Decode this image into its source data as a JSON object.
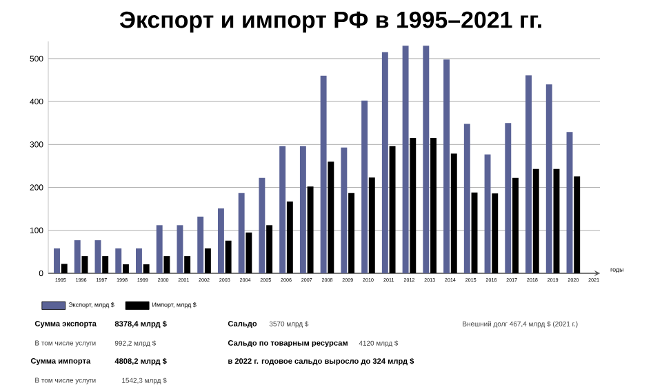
{
  "chart_data": {
    "type": "bar",
    "title": "Экспорт и импорт РФ в 1995–2021 гг.",
    "xlabel": "годы",
    "categories": [
      "1995",
      "1996",
      "1997",
      "1998",
      "1999",
      "2000",
      "2001",
      "2002",
      "2003",
      "2004",
      "2005",
      "2006",
      "2007",
      "2008",
      "2009",
      "2010",
      "2011",
      "2012",
      "2013",
      "2014",
      "2015",
      "2016",
      "2017",
      "2018",
      "2019",
      "2020",
      "2021"
    ],
    "series": [
      {
        "name": "Экспорт, млрд $",
        "color": "#5a6296",
        "values": [
          58,
          77,
          77,
          58,
          58,
          112,
          112,
          132,
          151,
          187,
          222,
          296,
          296,
          460,
          293,
          402,
          515,
          530,
          530,
          498,
          348,
          277,
          350,
          461,
          440,
          329,
          null
        ]
      },
      {
        "name": "Импорт, млрд $",
        "color": "#000000",
        "values": [
          22,
          40,
          40,
          21,
          21,
          40,
          40,
          58,
          76,
          95,
          112,
          167,
          202,
          260,
          187,
          223,
          296,
          315,
          315,
          279,
          188,
          186,
          222,
          243,
          243,
          226,
          null
        ]
      }
    ],
    "ylim": [
      0,
      540
    ],
    "yticks": [
      0,
      100,
      200,
      300,
      400,
      500
    ],
    "grid": "y",
    "legend": "bottom left",
    "annotations": [
      "Сумма экспорта",
      "8378,4 млрд $",
      "В том числе услуги",
      "992,2 млрд $",
      "Сумма импорта",
      "4808,2 млрд $",
      "В том числе услуги",
      "1542,3 млрд $",
      "Сальдо",
      "3570 млрд $",
      "Сальдо по товарным ресурсам",
      "4120 млрд $",
      "в 2022 г. годовое сальдо выросло до 324 млрд $",
      "Внешний долг 467,4 млрд $ (2021 г.)"
    ]
  }
}
